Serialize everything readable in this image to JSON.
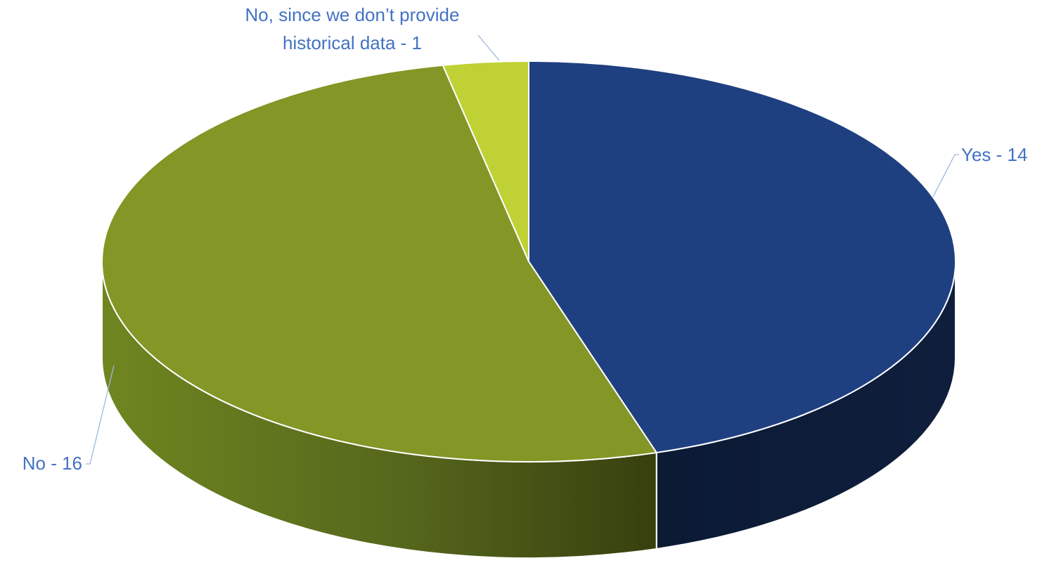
{
  "chart_data": {
    "type": "pie",
    "title": "",
    "slices": [
      {
        "label": "Yes",
        "value": 14,
        "color": "#1F4080",
        "side_color": "#0D1B36",
        "display": "Yes - 14"
      },
      {
        "label": "No",
        "value": 16,
        "color": "#839626",
        "side_color": "#5E7020",
        "display": "No - 16"
      },
      {
        "label": "No, since we don’t provide historical data",
        "value": 1,
        "color": "#BFD134",
        "side_color": "#8FA024",
        "display_lines": [
          "No, since we don’t provide",
          "historical data - 1"
        ]
      }
    ],
    "label_color": "#4472C4",
    "leader_color": "#9DB7E0",
    "legend": "none"
  }
}
